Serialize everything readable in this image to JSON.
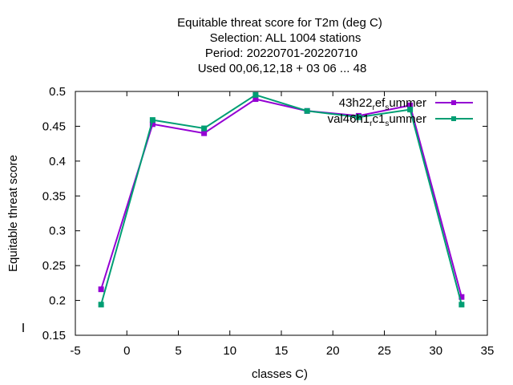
{
  "title_lines": [
    "Equitable threat score  for T2m (deg C)",
    "Selection: ALL   1004 stations",
    "Period: 20220701-20220710",
    "Used  00,06,12,18  + 03 06 ... 48"
  ],
  "chart_data": {
    "type": "line",
    "xlabel": "classes C)",
    "ylabel": "Equitable threat score",
    "xlim": [
      -5,
      35
    ],
    "ylim": [
      0.15,
      0.5
    ],
    "xticks": [
      -5,
      0,
      5,
      10,
      15,
      20,
      25,
      30,
      35
    ],
    "yticks": [
      0.15,
      0.2,
      0.25,
      0.3,
      0.35,
      0.4,
      0.45,
      0.5
    ],
    "xtick_labels": [
      "-5",
      "0",
      "5",
      "10",
      "15",
      "20",
      "25",
      "30",
      "35"
    ],
    "ytick_labels": [
      "0.15",
      "0.2",
      "0.25",
      "0.3",
      "0.35",
      "0.4",
      "0.45",
      "0.5"
    ],
    "grid": false,
    "legend_position": "top-right",
    "x": [
      -2.5,
      2.5,
      7.5,
      12.5,
      17.5,
      22.5,
      27.5,
      32.5
    ],
    "series": [
      {
        "name": "43h22_ref_summer",
        "label_main": "43h22",
        "label_sub1": "r",
        "label_mid": "ef",
        "label_sub2": "s",
        "label_end": "ummer",
        "color": "#9400d3",
        "values": [
          0.216,
          0.453,
          0.44,
          0.489,
          0.472,
          0.465,
          0.48,
          0.205
        ]
      },
      {
        "name": "val46h1_rc1_summer",
        "label_main": "val46h1",
        "label_sub1": "r",
        "label_mid": "c1",
        "label_sub2": "s",
        "label_end": "ummer",
        "color": "#009e73",
        "values": [
          0.194,
          0.459,
          0.447,
          0.495,
          0.472,
          0.463,
          0.474,
          0.194
        ]
      }
    ]
  }
}
